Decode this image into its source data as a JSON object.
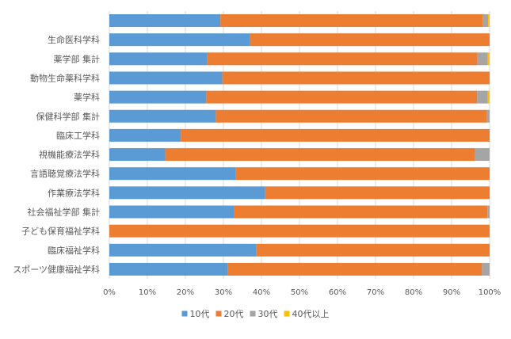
{
  "chart_data": {
    "type": "bar",
    "orientation": "horizontal",
    "stacked": "percent",
    "categories": [
      "",
      "生命医科学科",
      "薬学部 集計",
      "動物生命薬科学科",
      "薬学科",
      "保健科学部 集計",
      "臨床工学科",
      "視機能療法学科",
      "言語聴覚療法学科",
      "作業療法学科",
      "社会福祉学部 集計",
      "子ども保育福祉学科",
      "臨床福祉学科",
      "スポーツ健康福祉学科"
    ],
    "series": [
      {
        "name": "10代",
        "color": "#5B9BD5",
        "values": [
          29.2,
          37.0,
          25.8,
          29.7,
          25.5,
          28.0,
          18.8,
          14.7,
          33.3,
          41.0,
          32.8,
          0.0,
          38.7,
          31.2
        ]
      },
      {
        "name": "20代",
        "color": "#ED7D31",
        "values": [
          69.0,
          63.0,
          71.0,
          70.3,
          71.2,
          71.3,
          81.2,
          81.5,
          66.7,
          59.0,
          66.6,
          100.0,
          61.3,
          66.8
        ]
      },
      {
        "name": "30代",
        "color": "#A5A5A5",
        "values": [
          1.4,
          0.0,
          2.7,
          0.0,
          2.8,
          0.7,
          0.0,
          3.8,
          0.0,
          0.0,
          0.6,
          0.0,
          0.0,
          2.0
        ]
      },
      {
        "name": "40代以上",
        "color": "#FFC000",
        "values": [
          0.4,
          0.0,
          0.5,
          0.0,
          0.5,
          0.0,
          0.0,
          0.0,
          0.0,
          0.0,
          0.0,
          0.0,
          0.0,
          0.0
        ]
      }
    ],
    "xlim": [
      0,
      100
    ],
    "x_ticks": [
      "0%",
      "10%",
      "20%",
      "30%",
      "40%",
      "50%",
      "60%",
      "70%",
      "80%",
      "90%",
      "100%"
    ],
    "grid": true,
    "legend_position": "bottom"
  }
}
